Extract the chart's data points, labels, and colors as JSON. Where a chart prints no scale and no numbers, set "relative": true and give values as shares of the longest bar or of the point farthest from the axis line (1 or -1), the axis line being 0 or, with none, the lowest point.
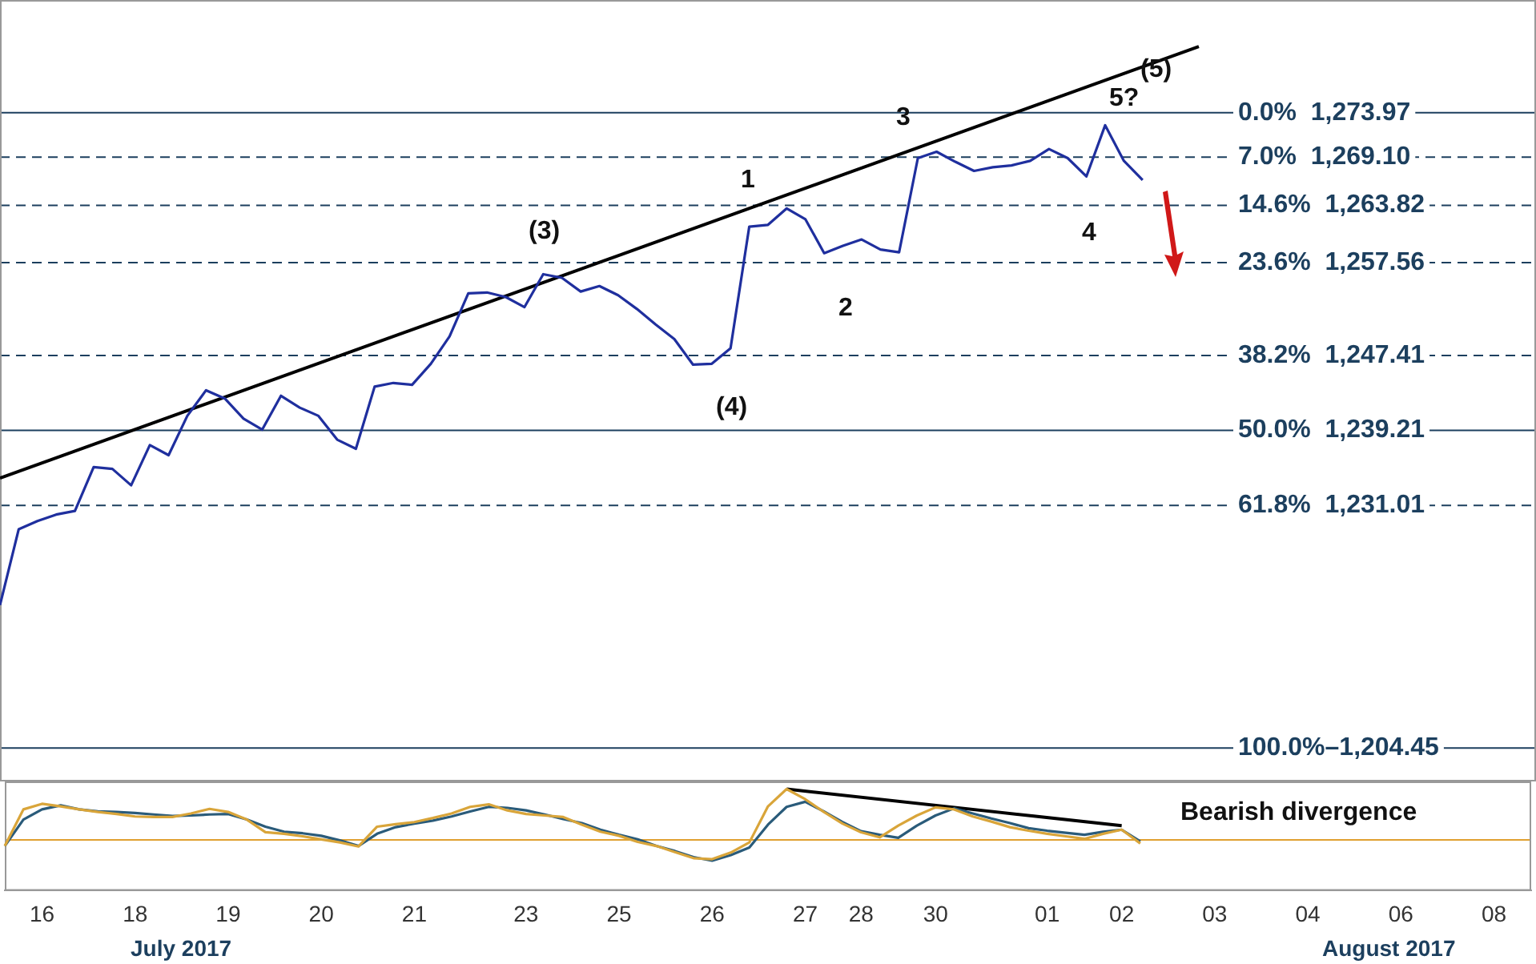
{
  "chart_data": [
    {
      "type": "line",
      "ylim": [
        1200.8,
        1286.3
      ],
      "tick_labels": false,
      "marker": "none",
      "legend": false,
      "categories": [
        null,
        null,
        "16",
        null,
        null,
        null,
        null,
        "18",
        null,
        null,
        null,
        null,
        "19",
        null,
        null,
        null,
        null,
        "20",
        null,
        null,
        null,
        null,
        "21",
        null,
        null,
        null,
        null,
        null,
        "23",
        null,
        null,
        null,
        null,
        "25",
        null,
        null,
        null,
        null,
        "26",
        null,
        null,
        null,
        null,
        "27",
        null,
        null,
        "28",
        null,
        null,
        null,
        "30",
        null,
        null,
        null,
        null,
        null,
        "01",
        null,
        null,
        null,
        "02",
        null,
        null,
        null,
        null,
        "03",
        null,
        null,
        null,
        null,
        "04",
        null,
        null,
        null,
        null,
        "06",
        null,
        null,
        null,
        null,
        "08",
        null,
        null
      ],
      "series": [
        {
          "color": "#1f2f9e",
          "values": [
            1220.1,
            1228.4,
            1229.3,
            1230.0,
            1230.4,
            1235.2,
            1235.0,
            1233.2,
            1237.6,
            1236.5,
            1240.8,
            1243.6,
            1242.7,
            1240.5,
            1239.3,
            1243.0,
            1241.7,
            1240.8,
            1238.2,
            1237.2,
            1244.0,
            1244.4,
            1244.2,
            1246.5,
            1249.5,
            1254.2,
            1254.3,
            1253.8,
            1252.7,
            1256.3,
            1255.9,
            1254.4,
            1255.0,
            1254.0,
            1252.5,
            1250.8,
            1249.2,
            1246.4,
            1246.5,
            1248.2,
            1261.5,
            1261.7,
            1263.5,
            1262.3,
            1258.6,
            1259.4,
            1260.1,
            1259.0,
            1258.7,
            1269.0,
            1269.7,
            1268.6,
            1267.6,
            1268.0,
            1268.2,
            1268.7,
            1270.0,
            1269.0,
            1267.0,
            1272.6,
            1268.7,
            1266.6,
            null,
            null,
            null,
            null,
            null,
            null,
            null,
            null,
            null,
            null,
            null,
            null,
            null,
            null,
            null,
            null,
            null,
            null,
            null,
            null,
            null
          ]
        },
        {
          "color": "#000000",
          "values": [
            1234.0,
            null,
            null,
            null,
            null,
            null,
            null,
            null,
            null,
            null,
            null,
            null,
            null,
            null,
            null,
            null,
            null,
            null,
            null,
            null,
            null,
            null,
            null,
            null,
            null,
            null,
            null,
            null,
            null,
            null,
            null,
            null,
            null,
            null,
            null,
            null,
            null,
            null,
            null,
            null,
            null,
            null,
            null,
            null,
            null,
            null,
            null,
            null,
            null,
            null,
            null,
            null,
            null,
            null,
            null,
            null,
            null,
            null,
            null,
            null,
            null,
            null,
            null,
            null,
            1281.2,
            null,
            null,
            null,
            null,
            null,
            null,
            null,
            null,
            null,
            null,
            null,
            null,
            null,
            null,
            null,
            null,
            null,
            null
          ]
        }
      ],
      "ref_lines": [
        {
          "axis": "y",
          "value": 1273.97,
          "label": "0.0%  1,273.97",
          "color": "#1c3f5e",
          "line_style": "solid"
        },
        {
          "axis": "y",
          "value": 1269.1,
          "label": "7.0%  1,269.10",
          "color": "#1c3f5e",
          "line_style": "dashed"
        },
        {
          "axis": "y",
          "value": 1263.82,
          "label": "14.6%  1,263.82",
          "color": "#1c3f5e",
          "line_style": "dashed"
        },
        {
          "axis": "y",
          "value": 1257.56,
          "label": "23.6%  1,257.56",
          "color": "#1c3f5e",
          "line_style": "dashed"
        },
        {
          "axis": "y",
          "value": 1247.41,
          "label": "38.2%  1,247.41",
          "color": "#1c3f5e",
          "line_style": "dashed"
        },
        {
          "axis": "y",
          "value": 1239.21,
          "label": "50.0%  1,239.21",
          "color": "#1c3f5e",
          "line_style": "solid"
        },
        {
          "axis": "y",
          "value": 1231.01,
          "label": "61.8%  1,231.01",
          "color": "#1c3f5e",
          "line_style": "dashed"
        },
        {
          "axis": "y",
          "value": 1204.45,
          "label": "100.0%–1,204.45",
          "color": "#1c3f5e",
          "line_style": "solid"
        }
      ],
      "annotations": [
        "(3)",
        "(4)",
        "1",
        "2",
        "3",
        "4",
        "5?",
        "(5)"
      ]
    },
    {
      "type": "line",
      "relative": true,
      "tick_labels": "x",
      "marker": "none",
      "legend": false,
      "categories": [
        null,
        null,
        "16",
        null,
        null,
        null,
        null,
        "18",
        null,
        null,
        null,
        null,
        "19",
        null,
        null,
        null,
        null,
        "20",
        null,
        null,
        null,
        null,
        "21",
        null,
        null,
        null,
        null,
        null,
        "23",
        null,
        null,
        null,
        null,
        "25",
        null,
        null,
        null,
        null,
        "26",
        null,
        null,
        null,
        null,
        "27",
        null,
        null,
        "28",
        null,
        null,
        null,
        "30",
        null,
        null,
        null,
        null,
        null,
        "01",
        null,
        null,
        null,
        "02",
        null,
        null,
        null,
        null,
        "03",
        null,
        null,
        null,
        null,
        "04",
        null,
        null,
        null,
        null,
        "06",
        null,
        null,
        null,
        null,
        "08",
        null,
        null
      ],
      "series": [
        {
          "color": "#d9a53a",
          "values": [
            -0.12,
            0.6,
            0.71,
            0.66,
            0.6,
            0.55,
            0.51,
            0.46,
            0.45,
            0.45,
            0.52,
            0.61,
            0.55,
            0.4,
            0.15,
            0.12,
            0.07,
            0.01,
            -0.05,
            -0.13,
            0.26,
            0.31,
            0.35,
            0.43,
            0.52,
            0.65,
            0.7,
            0.58,
            0.51,
            0.48,
            0.45,
            0.3,
            0.16,
            0.08,
            -0.04,
            -0.12,
            -0.24,
            -0.36,
            -0.38,
            -0.25,
            -0.05,
            0.66,
            1,
            0.8,
            0.55,
            0.32,
            0.15,
            0.05,
            0.28,
            0.48,
            0.64,
            0.6,
            0.46,
            0.36,
            0.25,
            0.18,
            0.12,
            0.07,
            0.02,
            0.12,
            0.2,
            -0.07,
            null,
            null,
            null,
            null,
            null,
            null,
            null,
            null,
            null,
            null,
            null,
            null,
            null,
            null,
            null,
            null,
            null,
            null,
            null,
            null,
            null
          ]
        },
        {
          "color": "#2a5b7a",
          "values": [
            -0.12,
            0.4,
            0.6,
            0.68,
            0.6,
            0.56,
            0.55,
            0.53,
            0.5,
            0.47,
            0.48,
            0.5,
            0.51,
            0.4,
            0.26,
            0.16,
            0.13,
            0.08,
            -0.01,
            -0.12,
            0.12,
            0.25,
            0.32,
            0.38,
            0.46,
            0.56,
            0.65,
            0.63,
            0.58,
            0.5,
            0.41,
            0.33,
            0.2,
            0.1,
            0.01,
            -0.12,
            -0.22,
            -0.34,
            -0.41,
            -0.3,
            -0.15,
            0.3,
            0.65,
            0.75,
            0.56,
            0.35,
            0.17,
            0.1,
            0.04,
            0.28,
            0.48,
            0.62,
            0.52,
            0.42,
            0.33,
            0.23,
            0.18,
            0.14,
            0.1,
            0.16,
            0.2,
            -0.03,
            null,
            null,
            null,
            null,
            null,
            null,
            null,
            null,
            null,
            null,
            null,
            null,
            null,
            null,
            null,
            null,
            null,
            null,
            null,
            null,
            null
          ]
        },
        {
          "color": "#000000",
          "values": [
            null,
            null,
            null,
            null,
            null,
            null,
            null,
            null,
            null,
            null,
            null,
            null,
            null,
            null,
            null,
            null,
            null,
            null,
            null,
            null,
            null,
            null,
            null,
            null,
            null,
            null,
            null,
            null,
            null,
            null,
            null,
            null,
            null,
            null,
            null,
            null,
            null,
            null,
            null,
            null,
            null,
            null,
            1,
            null,
            null,
            null,
            null,
            null,
            null,
            null,
            null,
            null,
            null,
            null,
            null,
            null,
            null,
            null,
            null,
            null,
            0.28,
            null,
            null,
            null,
            null,
            null,
            null,
            null,
            null,
            null,
            null,
            null,
            null,
            null,
            null,
            null,
            null,
            null,
            null,
            null,
            null,
            null,
            null
          ]
        }
      ],
      "ref_lines": [
        {
          "axis": "y",
          "value": 0,
          "color": "#e0a030",
          "line_style": "solid"
        }
      ],
      "annotations": [
        "Bearish divergence",
        "July 2017",
        "August 2017"
      ]
    }
  ]
}
